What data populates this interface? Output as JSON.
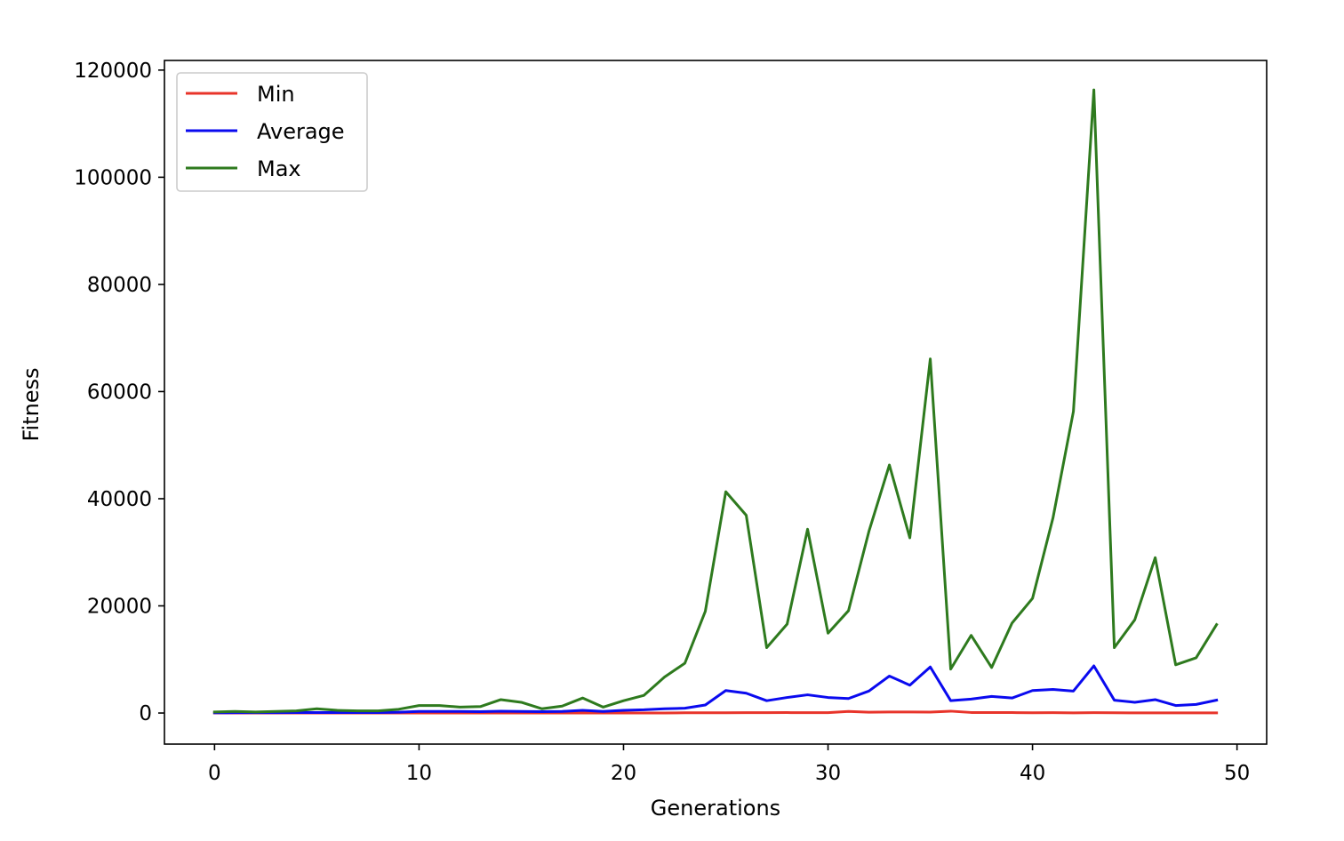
{
  "chart_data": {
    "type": "line",
    "title": "",
    "xlabel": "Generations",
    "ylabel": "Fitness",
    "xlim": [
      -2.45,
      51.45
    ],
    "ylim": [
      -5800,
      121800
    ],
    "xticks": [
      0,
      10,
      20,
      30,
      40,
      50
    ],
    "yticks": [
      0,
      20000,
      40000,
      60000,
      80000,
      100000,
      120000
    ],
    "grid": false,
    "legend_position": "top-left",
    "x": [
      0,
      1,
      2,
      3,
      4,
      5,
      6,
      7,
      8,
      9,
      10,
      11,
      12,
      13,
      14,
      15,
      16,
      17,
      18,
      19,
      20,
      21,
      22,
      23,
      24,
      25,
      26,
      27,
      28,
      29,
      30,
      31,
      32,
      33,
      34,
      35,
      36,
      37,
      38,
      39,
      40,
      41,
      42,
      43,
      44,
      45,
      46,
      47,
      48,
      49
    ],
    "series": [
      {
        "name": "Min",
        "color": "#e8342a",
        "values": [
          0,
          0,
          0,
          0,
          0,
          0,
          0,
          0,
          0,
          0,
          0,
          0,
          0,
          0,
          0,
          0,
          0,
          0,
          0,
          0,
          0,
          0,
          0,
          50,
          50,
          50,
          60,
          60,
          80,
          60,
          60,
          300,
          150,
          200,
          200,
          180,
          350,
          100,
          100,
          80,
          50,
          60,
          30,
          60,
          40,
          30,
          30,
          30,
          30,
          30
        ]
      },
      {
        "name": "Average",
        "color": "#0a0aef",
        "values": [
          50,
          60,
          60,
          60,
          80,
          100,
          100,
          100,
          100,
          150,
          300,
          300,
          300,
          250,
          350,
          300,
          250,
          300,
          500,
          300,
          500,
          600,
          800,
          900,
          1500,
          4200,
          3700,
          2300,
          2900,
          3400,
          2900,
          2700,
          4100,
          6900,
          5200,
          8600,
          2300,
          2600,
          3100,
          2800,
          4200,
          4400,
          4100,
          8800,
          2400,
          2000,
          2500,
          1400,
          1600,
          2400
        ]
      },
      {
        "name": "Max",
        "color": "#2e7a1e",
        "values": [
          200,
          300,
          200,
          300,
          400,
          800,
          500,
          400,
          400,
          700,
          1400,
          1400,
          1100,
          1200,
          2500,
          2000,
          800,
          1300,
          2800,
          1100,
          2300,
          3300,
          6700,
          9300,
          19000,
          41300,
          36900,
          12200,
          16600,
          34300,
          14900,
          19100,
          33900,
          46300,
          32700,
          66100,
          8200,
          14500,
          8500,
          16800,
          21400,
          36400,
          56300,
          116300,
          12200,
          17400,
          29000,
          9000,
          10300,
          16500
        ]
      }
    ]
  }
}
